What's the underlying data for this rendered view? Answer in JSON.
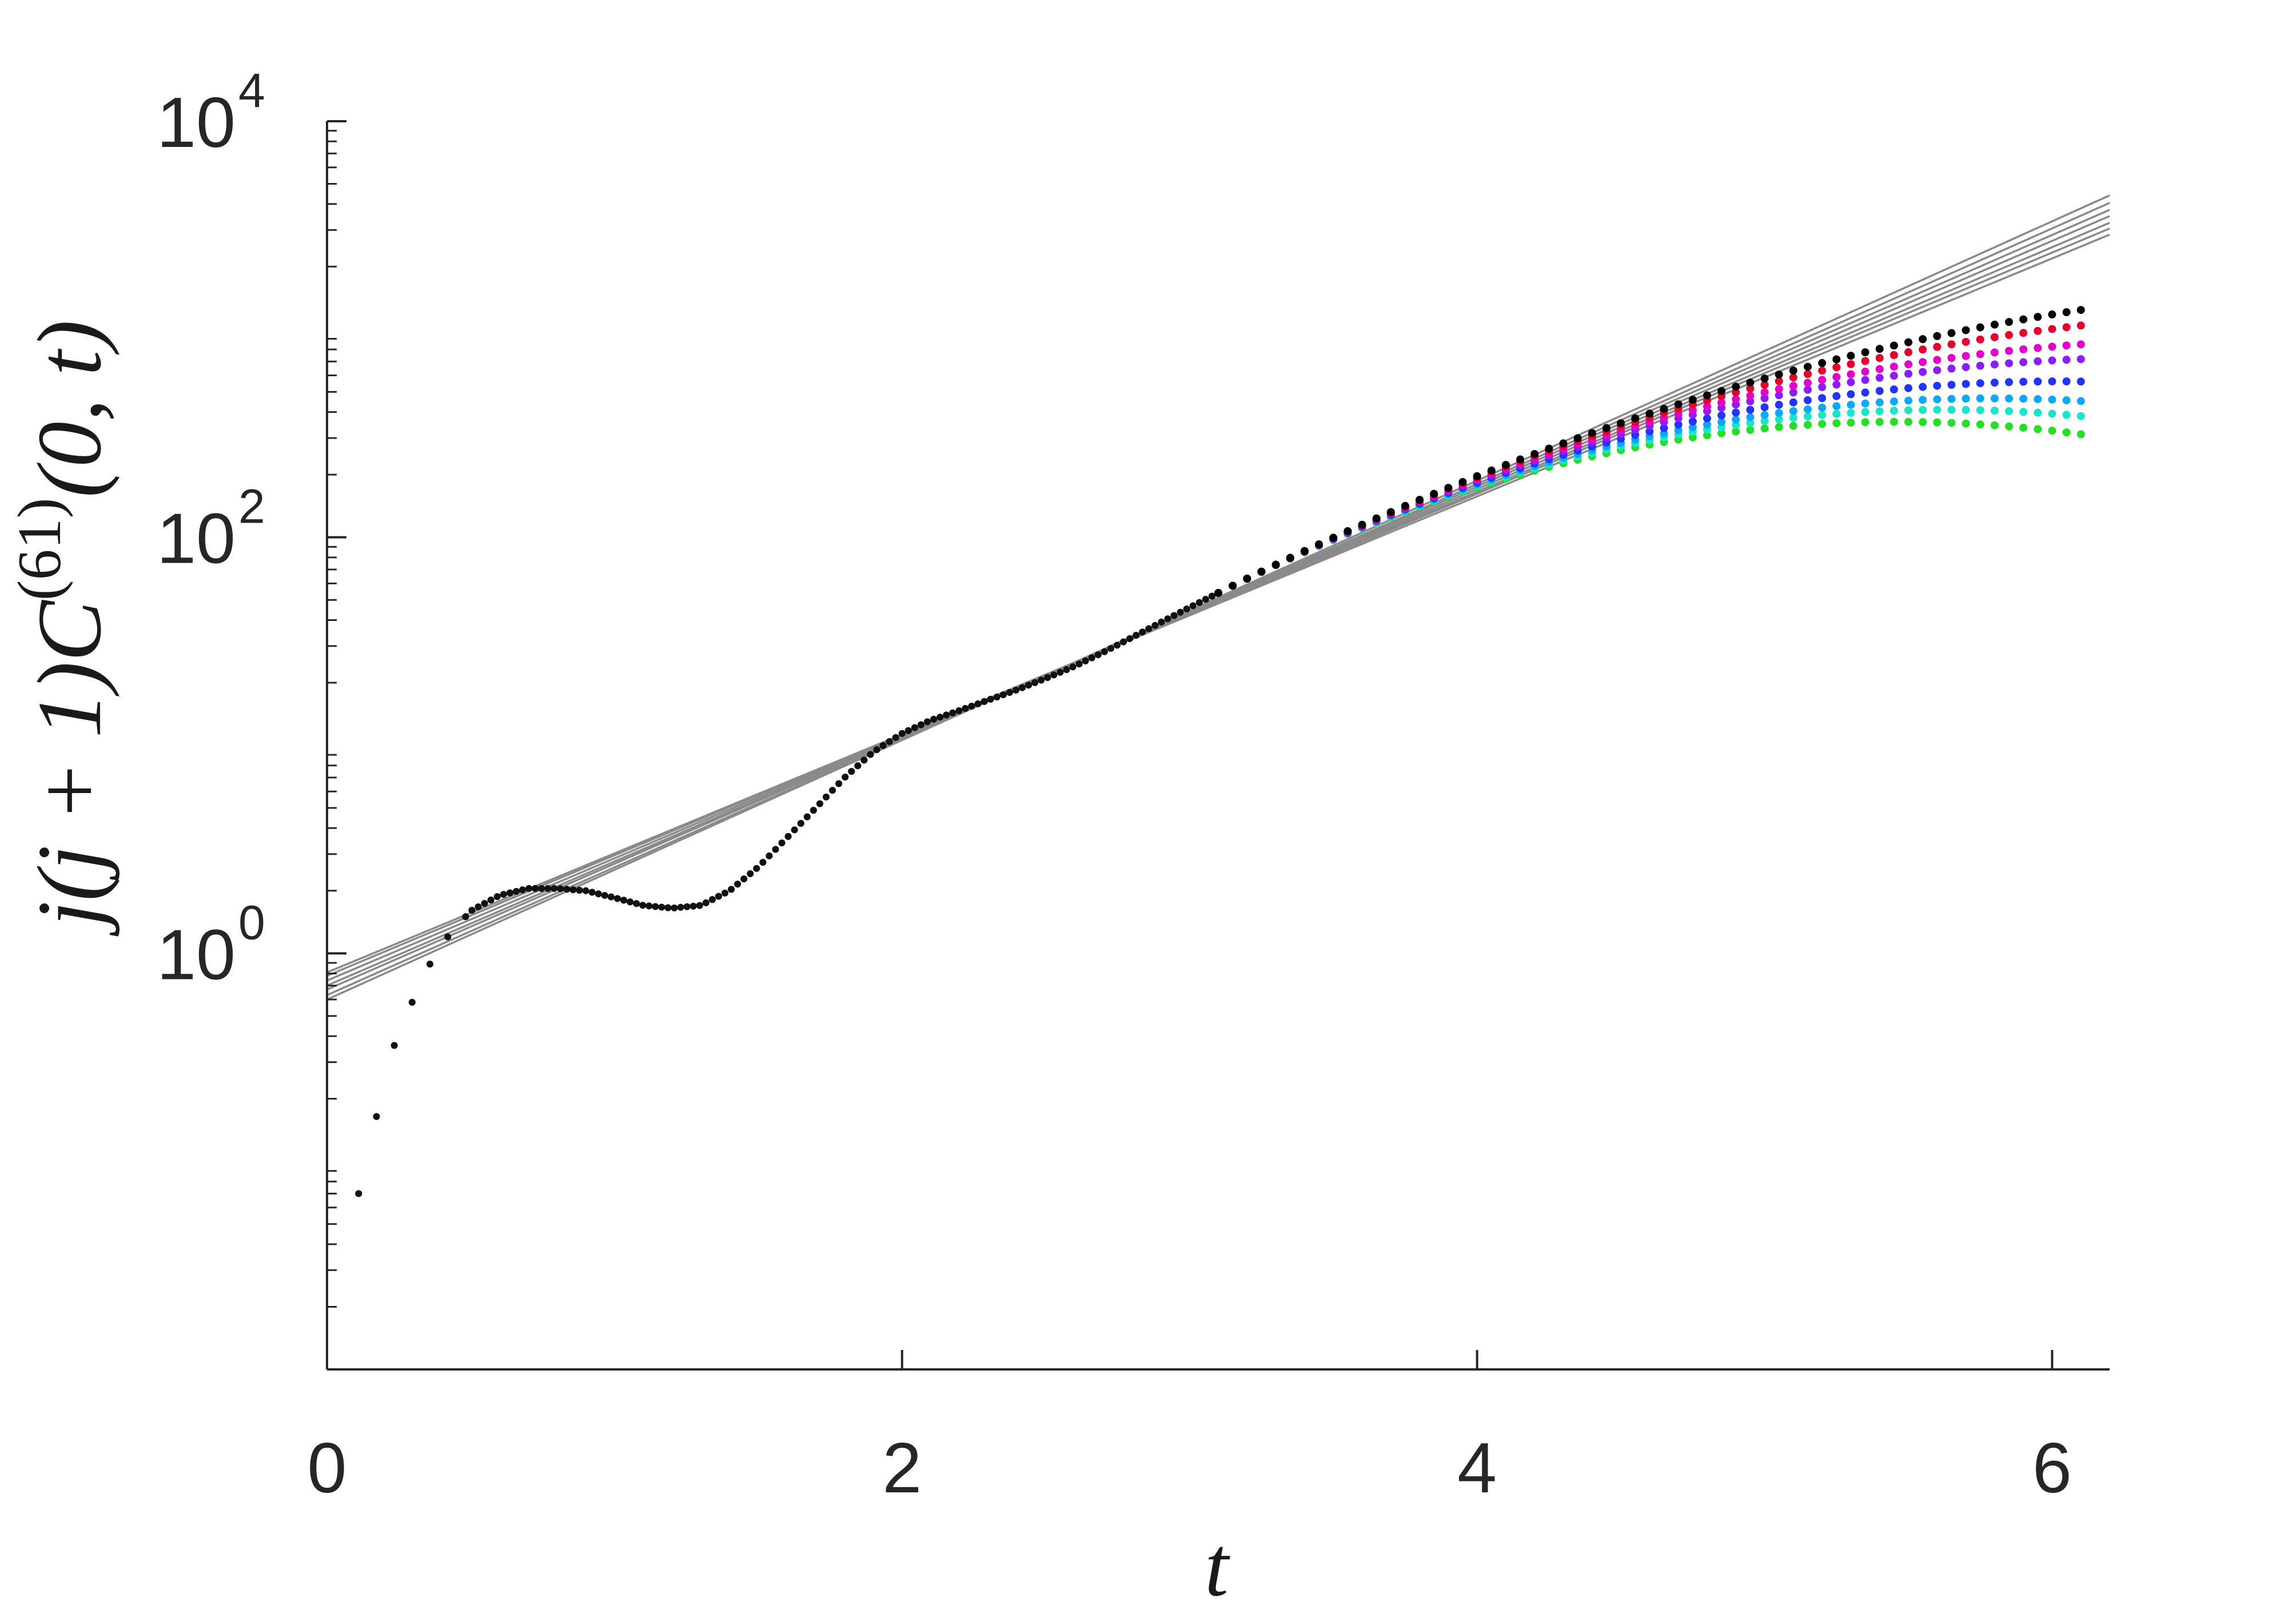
{
  "chart_data": {
    "type": "scatter",
    "title": "",
    "xlabel": "t",
    "ylabel": {
      "before_sup": "j(j + 1)C",
      "sup": "(61)",
      "after_sup": "(0, t)"
    },
    "xlim": [
      0,
      6.2
    ],
    "ylim": [
      0.01,
      10000
    ],
    "yscale": "log",
    "grid": false,
    "legend": "none",
    "x_ticks": [
      0,
      2,
      4,
      6
    ],
    "x_tick_labels": [
      "0",
      "2",
      "4",
      "6"
    ],
    "y_ticks": [
      1,
      100,
      10000
    ],
    "y_tick_labels": [
      {
        "base": "10",
        "exp": "0"
      },
      {
        "base": "10",
        "exp": "2"
      },
      {
        "base": "10",
        "exp": "4"
      }
    ],
    "dotted_series_common": {
      "x": [
        0.11,
        0.17,
        0.23,
        0.3,
        0.36,
        0.42,
        0.5,
        0.6,
        0.7,
        0.8,
        0.9,
        1.0,
        1.1,
        1.2,
        1.3,
        1.4,
        1.5,
        1.6,
        1.7,
        1.8,
        1.9,
        2.0,
        2.1,
        2.2,
        2.3,
        2.4,
        2.5,
        2.6,
        2.7,
        2.8,
        2.9,
        3.0,
        3.1
      ],
      "y": [
        0.07,
        0.16,
        0.35,
        0.6,
        0.9,
        1.2,
        1.6,
        1.9,
        2.05,
        2.05,
        2.0,
        1.85,
        1.7,
        1.65,
        1.7,
        2.0,
        2.6,
        3.6,
        5.0,
        7.0,
        9.3,
        11.4,
        13.2,
        14.7,
        16.5,
        18.5,
        21.0,
        24.0,
        28.0,
        33.0,
        39.0,
        46.0,
        54.0
      ]
    },
    "dotted_series_end": {
      "x_end": 6.12,
      "series": [
        {
          "color": "#000000",
          "y_end": 1250
        },
        {
          "color": "#e8002a",
          "y_end": 1050
        },
        {
          "color": "#e600cc",
          "y_end": 850
        },
        {
          "color": "#8a1cff",
          "y_end": 720
        },
        {
          "color": "#2233ff",
          "y_end": 560
        },
        {
          "color": "#0aa8ff",
          "y_end": 450
        },
        {
          "color": "#19e6c8",
          "y_end": 380
        },
        {
          "color": "#22e022",
          "y_end": 310
        }
      ]
    },
    "reference_lines": {
      "color": "#8a8a8a",
      "x_range": [
        0,
        6.2
      ],
      "lines": [
        {
          "y_start": 0.6,
          "y_end": 4400
        },
        {
          "y_start": 0.63,
          "y_end": 4050
        },
        {
          "y_start": 0.67,
          "y_end": 3750
        },
        {
          "y_start": 0.7,
          "y_end": 3500
        },
        {
          "y_start": 0.74,
          "y_end": 3250
        },
        {
          "y_start": 0.78,
          "y_end": 3050
        },
        {
          "y_start": 0.81,
          "y_end": 2850
        }
      ]
    }
  }
}
